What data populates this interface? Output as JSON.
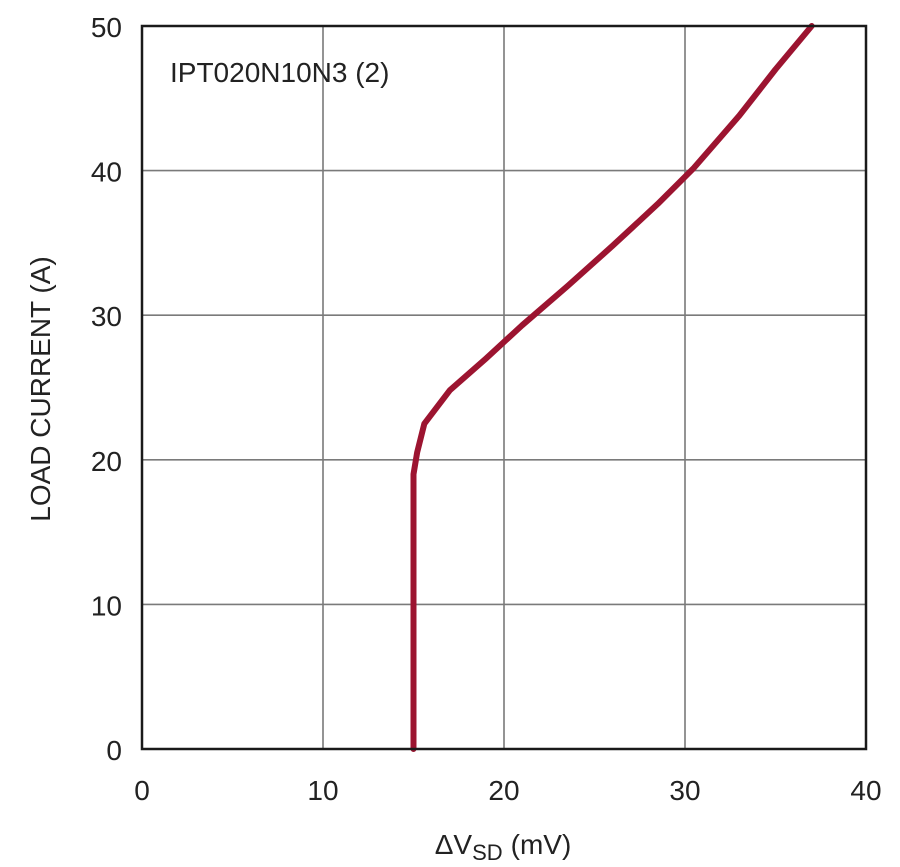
{
  "chart_data": {
    "type": "line",
    "title": "",
    "annotation": "IPT020N10N3 (2)",
    "xlabel": "ΔV",
    "xlabel_sub": "SD",
    "xlabel_unit": "(mV)",
    "ylabel": "LOAD CURRENT (A)",
    "xlim": [
      0,
      40
    ],
    "ylim": [
      0,
      50
    ],
    "xticks": [
      0,
      10,
      20,
      30,
      40
    ],
    "yticks": [
      0,
      10,
      20,
      30,
      40,
      50
    ],
    "xtick_labels": [
      "0",
      "10",
      "20",
      "30",
      "40"
    ],
    "ytick_labels": [
      "0",
      "10",
      "20",
      "30",
      "40",
      "50"
    ],
    "grid": true,
    "line_color": "#9c1430",
    "series": [
      {
        "x": [
          15.0,
          15.0,
          15.0,
          15.0,
          15.2,
          15.6,
          17.0,
          19.0,
          21.0,
          23.5,
          26.0,
          28.5,
          30.5,
          33.0,
          35.0,
          37.0
        ],
        "y": [
          0,
          5,
          10,
          19,
          20.5,
          22.5,
          24.8,
          27.0,
          29.3,
          32.0,
          34.8,
          37.7,
          40.2,
          43.8,
          47.0,
          50.0
        ]
      }
    ]
  }
}
